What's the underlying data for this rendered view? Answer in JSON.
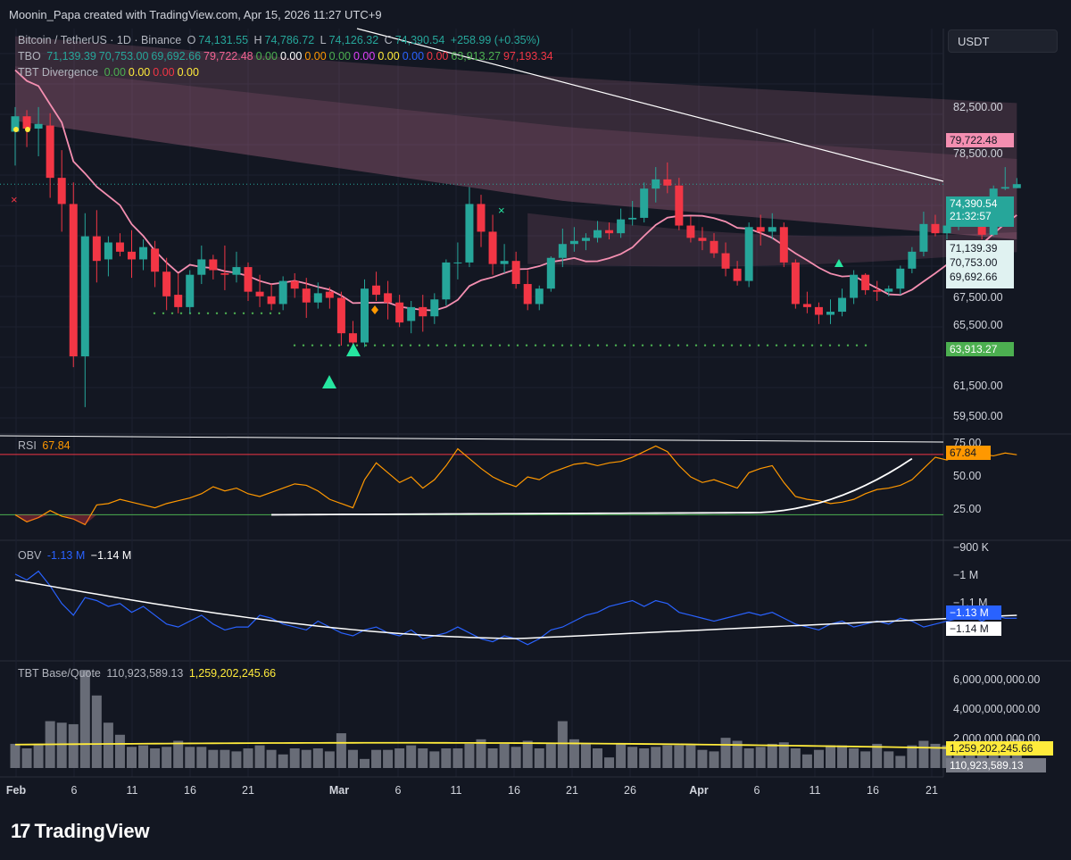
{
  "header": {
    "credit": "Moonin_Papa created with TradingView.com, Apr 15, 2026 11:27 UTC+9"
  },
  "currency_button": "USDT",
  "main_legend": {
    "symbol": "Bitcoin / TetherUS · 1D · Binance",
    "o_label": "O",
    "o_value": "74,131.55",
    "h_label": "H",
    "h_value": "74,786.72",
    "l_label": "L",
    "l_value": "74,126.32",
    "c_label": "C",
    "c_value": "74,390.54",
    "change": "+258.99 (+0.35%)"
  },
  "tbo_legend": {
    "name": "TBO",
    "values": [
      "71,139.39",
      "70,753.00",
      "69,692.66",
      "79,722.48",
      "0.00",
      "0.00",
      "0.00",
      "0.00",
      "0.00",
      "0.00",
      "0.00",
      "0.00",
      "63,913.27",
      "97,193.34"
    ],
    "colors": [
      "#26a69a",
      "#26a69a",
      "#26a69a",
      "#f06292",
      "#4caf50",
      "#ffffff",
      "#ff9800",
      "#4caf50",
      "#e040fb",
      "#ffeb3b",
      "#2962ff",
      "#f23645",
      "#4caf50",
      "#f23645"
    ]
  },
  "divergence_legend": {
    "name": "TBT Divergence",
    "values": [
      "0.00",
      "0.00",
      "0.00",
      "0.00"
    ],
    "colors": [
      "#4caf50",
      "#ffeb3b",
      "#f23645",
      "#ffeb3b"
    ]
  },
  "rsi_legend": {
    "name": "RSI",
    "value": "67.84"
  },
  "obv_legend": {
    "name": "OBV",
    "value1": "-1.13 M",
    "value2": "−1.14 M"
  },
  "vol_legend": {
    "name": "TBT Base/Quote",
    "value1": "110,923,589.13",
    "value2": "1,259,202,245.66"
  },
  "price_scale": [
    "82,500.00",
    "78,500.00",
    "67,500.00",
    "65,500.00",
    "61,500.00",
    "59,500.00"
  ],
  "price_boxes": {
    "upper": "79,722.48",
    "last": "74,390.54",
    "countdown": "21:32:57",
    "tbo1": "71,139.39",
    "tbo2": "70,753.00",
    "tbo3": "69,692.66",
    "lower": "63,913.27"
  },
  "rsi_scale": [
    "75.00",
    "50.00",
    "25.00"
  ],
  "rsi_box": "67.84",
  "obv_scale": [
    "−900 K",
    "−1 M",
    "−1.1 M"
  ],
  "obv_boxes": {
    "blue": "−1.13 M",
    "white": "−1.14 M"
  },
  "vol_scale": [
    "6,000,000,000.00",
    "4,000,000,000.00",
    "2,000,000,000.00"
  ],
  "vol_boxes": {
    "ma": "1,259,202,245.66",
    "last": "110,923,589.13"
  },
  "x_axis": [
    {
      "label": "Feb",
      "bold": true
    },
    {
      "label": "6",
      "bold": false
    },
    {
      "label": "11",
      "bold": false
    },
    {
      "label": "16",
      "bold": false
    },
    {
      "label": "21",
      "bold": false
    },
    {
      "label": "Mar",
      "bold": true
    },
    {
      "label": "6",
      "bold": false
    },
    {
      "label": "11",
      "bold": false
    },
    {
      "label": "16",
      "bold": false
    },
    {
      "label": "21",
      "bold": false
    },
    {
      "label": "26",
      "bold": false
    },
    {
      "label": "Apr",
      "bold": true
    },
    {
      "label": "6",
      "bold": false
    },
    {
      "label": "11",
      "bold": false
    },
    {
      "label": "16",
      "bold": false
    },
    {
      "label": "21",
      "bold": false
    }
  ],
  "brand": "TradingView",
  "chart_data": {
    "type": "candlestick",
    "title": "Bitcoin / TetherUS · 1D · Binance",
    "ylim": [
      58500,
      84500
    ],
    "candles": [
      [
        77800,
        79400,
        75600,
        78800
      ],
      [
        78800,
        79200,
        76800,
        78000
      ],
      [
        78000,
        79400,
        76200,
        78300
      ],
      [
        78200,
        79000,
        73500,
        74800
      ],
      [
        74800,
        76600,
        71300,
        73100
      ],
      [
        73100,
        74500,
        62500,
        63200
      ],
      [
        63200,
        72500,
        59900,
        71000
      ],
      [
        71000,
        72700,
        68000,
        69400
      ],
      [
        69500,
        71000,
        68400,
        70600
      ],
      [
        70600,
        71200,
        69700,
        70000
      ],
      [
        70000,
        71400,
        68300,
        69500
      ],
      [
        69500,
        70800,
        68800,
        70300
      ],
      [
        70200,
        70700,
        67700,
        68700
      ],
      [
        68700,
        69600,
        66200,
        67100
      ],
      [
        67200,
        68600,
        66000,
        66400
      ],
      [
        66400,
        68800,
        66000,
        68500
      ],
      [
        68500,
        70400,
        67900,
        69500
      ],
      [
        69500,
        69800,
        68200,
        68800
      ],
      [
        68600,
        70400,
        67500,
        68500
      ],
      [
        68500,
        70000,
        68000,
        69000
      ],
      [
        69000,
        69300,
        66800,
        67400
      ],
      [
        67400,
        68500,
        66400,
        67100
      ],
      [
        67100,
        67900,
        66200,
        66600
      ],
      [
        66600,
        68400,
        66200,
        68100
      ],
      [
        68100,
        68600,
        67000,
        67600
      ],
      [
        67600,
        68300,
        65700,
        66700
      ],
      [
        66700,
        68000,
        66300,
        67300
      ],
      [
        67400,
        67700,
        66300,
        67000
      ],
      [
        67000,
        67400,
        63900,
        64700
      ],
      [
        64700,
        65500,
        63300,
        64100
      ],
      [
        64100,
        68200,
        63800,
        67600
      ],
      [
        67800,
        68700,
        66800,
        67200
      ],
      [
        67300,
        68100,
        65600,
        66700
      ],
      [
        66700,
        67200,
        65100,
        65400
      ],
      [
        65500,
        66800,
        64700,
        66400
      ],
      [
        66400,
        67200,
        64800,
        65800
      ],
      [
        65800,
        67300,
        65300,
        66900
      ],
      [
        66900,
        69500,
        66500,
        69300
      ],
      [
        69300,
        70600,
        68200,
        69300
      ],
      [
        69300,
        74200,
        69000,
        73100
      ],
      [
        73100,
        73700,
        70300,
        71300
      ],
      [
        71300,
        72400,
        68500,
        69200
      ],
      [
        69200,
        70500,
        68600,
        69400
      ],
      [
        69400,
        70000,
        67600,
        67900
      ],
      [
        67900,
        68800,
        66200,
        66600
      ],
      [
        66600,
        67800,
        66200,
        67600
      ],
      [
        67600,
        69700,
        67400,
        69600
      ],
      [
        69600,
        71500,
        69000,
        70500
      ],
      [
        70500,
        71600,
        70000,
        70700
      ],
      [
        70700,
        71200,
        70100,
        70900
      ],
      [
        70900,
        72000,
        70600,
        71400
      ],
      [
        71400,
        71900,
        70800,
        71200
      ],
      [
        71200,
        72800,
        70900,
        72100
      ],
      [
        72100,
        73300,
        71700,
        72200
      ],
      [
        72200,
        74500,
        71900,
        74100
      ],
      [
        74100,
        75500,
        73200,
        74700
      ],
      [
        74700,
        75800,
        73800,
        74300
      ],
      [
        74300,
        74800,
        71400,
        71700
      ],
      [
        71700,
        72300,
        70600,
        70900
      ],
      [
        70900,
        71600,
        70100,
        70700
      ],
      [
        70700,
        71200,
        69600,
        69900
      ],
      [
        69900,
        70600,
        68400,
        68900
      ],
      [
        68900,
        69400,
        67800,
        68100
      ],
      [
        68100,
        71900,
        67700,
        71600
      ],
      [
        71600,
        72400,
        70400,
        71300
      ],
      [
        71300,
        72500,
        70800,
        71600
      ],
      [
        71600,
        71900,
        69000,
        69300
      ],
      [
        69300,
        69500,
        66300,
        66600
      ],
      [
        66600,
        67400,
        66000,
        66400
      ],
      [
        66400,
        66700,
        65300,
        65900
      ],
      [
        65900,
        66900,
        65300,
        66100
      ],
      [
        66100,
        67600,
        65800,
        67000
      ],
      [
        67000,
        68800,
        66600,
        68500
      ],
      [
        68500,
        68600,
        67200,
        67500
      ],
      [
        67500,
        68100,
        66800,
        67400
      ],
      [
        67400,
        67800,
        67100,
        67600
      ],
      [
        67600,
        69100,
        67200,
        68900
      ],
      [
        68900,
        70300,
        68600,
        70000
      ],
      [
        70000,
        72600,
        69700,
        71800
      ],
      [
        71800,
        72400,
        71000,
        71200
      ],
      [
        71200,
        72300,
        70800,
        71700
      ],
      [
        71700,
        72900,
        71400,
        72600
      ],
      [
        72600,
        73200,
        72300,
        72700
      ],
      [
        72700,
        73000,
        70800,
        71100
      ],
      [
        71100,
        74300,
        71000,
        74100
      ],
      [
        74100,
        75500,
        74000,
        74200
      ],
      [
        74131.55,
        74786.72,
        74126.32,
        74390.54
      ]
    ]
  }
}
